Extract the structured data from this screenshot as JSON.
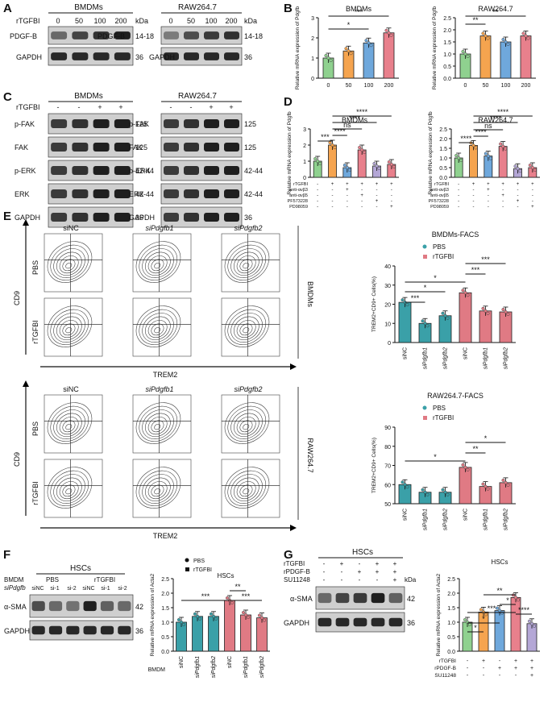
{
  "panels": {
    "A": "A",
    "B": "B",
    "C": "C",
    "D": "D",
    "E": "E",
    "F": "F",
    "G": "G"
  },
  "a": {
    "left": {
      "title": "BMDMs",
      "treat": "rTGFBI",
      "doses": [
        "0",
        "50",
        "100",
        "200"
      ],
      "kda": "kDa",
      "rows": [
        {
          "name": "PDGF-B",
          "size": "14-18"
        },
        {
          "name": "GAPDH",
          "size": "36"
        }
      ]
    },
    "right": {
      "title": "RAW264.7",
      "doses": [
        "0",
        "50",
        "100",
        "200"
      ],
      "kda": "kDa",
      "rows": [
        {
          "name": "PDGF-B",
          "size": "14-18"
        },
        {
          "name": "GAPDH",
          "size": "36"
        }
      ]
    }
  },
  "b": {
    "left": {
      "title": "BMDMs",
      "ylabel": "Relative mRNA expression of Pdgfb",
      "x": [
        "0",
        "50",
        "100",
        "200"
      ],
      "values": [
        1.0,
        1.35,
        1.75,
        2.25
      ],
      "ylim": [
        0,
        3
      ],
      "yticks": [
        "0",
        "1",
        "2",
        "3"
      ],
      "sig": [
        "*",
        "***"
      ],
      "colors": [
        "#8fd18f",
        "#f5a44f",
        "#6fa8dc",
        "#e8808c"
      ]
    },
    "right": {
      "title": "RAW264.7",
      "ylabel": "Relative mRNA expression of Pdgfb",
      "x": [
        "0",
        "50",
        "100",
        "200"
      ],
      "values": [
        1.0,
        1.75,
        1.5,
        1.75
      ],
      "ylim": [
        0,
        2.5
      ],
      "yticks": [
        "0.0",
        "0.5",
        "1.0",
        "1.5",
        "2.0",
        "2.5"
      ],
      "sig": [
        "**",
        "**"
      ]
    }
  },
  "c": {
    "left": {
      "title": "BMDMs",
      "treat": "rTGFBI",
      "signs": [
        "-",
        "-",
        "+",
        "+"
      ],
      "rows": [
        {
          "name": "p-FAK",
          "size": "125"
        },
        {
          "name": "FAK",
          "size": "125"
        },
        {
          "name": "p-ERK",
          "size": "42-44"
        },
        {
          "name": "ERK",
          "size": "42-44"
        },
        {
          "name": "GAPDH",
          "size": "36"
        }
      ]
    },
    "right": {
      "title": "RAW264.7",
      "signs": [
        "-",
        "-",
        "+",
        "+"
      ],
      "rows": [
        {
          "name": "p-FAK",
          "size": "125"
        },
        {
          "name": "FAK",
          "size": "125"
        },
        {
          "name": "p-ERK",
          "size": "42-44"
        },
        {
          "name": "ERK",
          "size": "42-44"
        },
        {
          "name": "GAPDH",
          "size": "36"
        }
      ]
    }
  },
  "d": {
    "left": {
      "title": "BMDMs",
      "ylabel": "Relative mRNA expression of Pdgfb",
      "values": [
        1.0,
        2.0,
        0.6,
        1.7,
        0.7,
        0.8
      ],
      "ylim": [
        0,
        3
      ],
      "yticks": [
        "0",
        "1",
        "2",
        "3"
      ],
      "sig": [
        "***",
        "****",
        "ns",
        "****",
        "****"
      ],
      "colors": [
        "#8fd18f",
        "#f5a44f",
        "#6fa8dc",
        "#e8808c",
        "#b4a7d6",
        "#e8808c"
      ]
    },
    "right": {
      "title": "RAW264.7",
      "ylabel": "Relative mRNA expression of Pdgfb",
      "values": [
        1.0,
        1.65,
        1.1,
        1.6,
        0.45,
        0.5
      ],
      "ylim": [
        0,
        2.5
      ],
      "yticks": [
        "0.0",
        "0.5",
        "1.0",
        "1.5",
        "2.0",
        "2.5"
      ],
      "sig": [
        "****",
        "****",
        "ns",
        "****",
        "****"
      ]
    },
    "treat_rows": [
      {
        "name": "rTGFBI",
        "signs": [
          "-",
          "+",
          "+",
          "+",
          "+",
          "+"
        ]
      },
      {
        "name": "anti-αvβ3",
        "signs": [
          "-",
          "-",
          "+",
          "-",
          "-",
          "-"
        ]
      },
      {
        "name": "anti-αvβ5",
        "signs": [
          "-",
          "-",
          "-",
          "+",
          "-",
          "-"
        ]
      },
      {
        "name": "PF573228",
        "signs": [
          "-",
          "-",
          "-",
          "-",
          "+",
          "-"
        ]
      },
      {
        "name": "PD98059",
        "signs": [
          "-",
          "-",
          "-",
          "-",
          "-",
          "+"
        ]
      }
    ]
  },
  "e": {
    "cols": [
      "siNC",
      "siPdgfb1",
      "siPdgfb2"
    ],
    "rows": [
      "PBS",
      "rTGFBI"
    ],
    "yaxis": "CD9",
    "xaxis": "TREM2",
    "cell_top": "BMDMs",
    "cell_bottom": "RAW264.7",
    "bmdm_chart": {
      "title": "BMDMs-FACS",
      "ylabel": "TREM2+CD9+ Cells(%)",
      "legend": [
        "PBS",
        "rTGFBI"
      ],
      "categories": [
        "siNC",
        "siPdgfb1",
        "siPdgfb2",
        "siNC",
        "siPdgfb1",
        "siPdgfb2"
      ],
      "values": [
        21,
        10,
        14,
        26,
        16.5,
        16
      ],
      "ylim": [
        0,
        40
      ],
      "yticks": [
        "0",
        "10",
        "20",
        "30",
        "40"
      ],
      "sig": [
        "***",
        "*",
        "*",
        "***",
        "***"
      ]
    },
    "raw_chart": {
      "title": "RAW264.7-FACS",
      "ylabel": "TREM2+CD9+ Cells(%)",
      "legend": [
        "PBS",
        "rTGFBI"
      ],
      "categories": [
        "siNC",
        "siPdgfb1",
        "siPdgfb2",
        "siNC",
        "siPdgfb1",
        "siPdgfb2"
      ],
      "values": [
        60,
        56,
        56,
        69,
        59,
        61
      ],
      "ylim": [
        50,
        90
      ],
      "yticks": [
        "50",
        "60",
        "70",
        "80",
        "90"
      ],
      "sig": [
        "*",
        "**",
        "*"
      ]
    }
  },
  "f": {
    "title": "HSCs",
    "bmdm": "BMDM",
    "si": "siPdgfb",
    "groups": [
      "PBS",
      "rTGFBI"
    ],
    "lanes": [
      "siNC",
      "si-1",
      "si-2",
      "siNC",
      "si-1",
      "si-2"
    ],
    "rows": [
      {
        "name": "α-SMA",
        "size": "42"
      },
      {
        "name": "GAPDH",
        "size": "36"
      }
    ],
    "chart": {
      "title": "HSCs",
      "ylabel": "Relative mRNA expression of Acta2",
      "legend": [
        "PBS",
        "rTGFBI"
      ],
      "xlabel": "BMDM",
      "categories": [
        "siNC",
        "siPdgfb1",
        "siPdgfb2",
        "siNC",
        "siPdgfb1",
        "siPdgfb2"
      ],
      "values": [
        1.0,
        1.2,
        1.2,
        1.75,
        1.25,
        1.15
      ],
      "ylim": [
        0,
        2.5
      ],
      "yticks": [
        "0.0",
        "0.5",
        "1.0",
        "1.5",
        "2.0",
        "2.5"
      ],
      "sig": [
        "***",
        "**",
        "***"
      ]
    }
  },
  "g": {
    "title": "HSCs",
    "kda": "kDa",
    "treat_rows": [
      {
        "name": "rTGFBI",
        "signs": [
          "-",
          "+",
          "-",
          "+",
          "+"
        ]
      },
      {
        "name": "rPDGF-B",
        "signs": [
          "-",
          "-",
          "+",
          "+",
          "+"
        ]
      },
      {
        "name": "SU11248",
        "signs": [
          "-",
          "-",
          "-",
          "-",
          "+"
        ]
      }
    ],
    "rows": [
      {
        "name": "α-SMA",
        "size": "42"
      },
      {
        "name": "GAPDH",
        "size": "36"
      }
    ],
    "chart": {
      "title": "HSCs",
      "ylabel": "Relative mRNA expression of Acta2",
      "values": [
        1.0,
        1.35,
        1.4,
        1.85,
        0.95
      ],
      "ylim": [
        0,
        2.5
      ],
      "yticks": [
        "0.0",
        "0.5",
        "1.0",
        "1.5",
        "2.0",
        "2.5"
      ],
      "sig": [
        "*",
        "*",
        "***",
        "**",
        "*",
        "****"
      ],
      "colors": [
        "#8fd18f",
        "#f5a44f",
        "#6fa8dc",
        "#e8808c",
        "#b4a7d6"
      ]
    }
  },
  "colors": {
    "teal": "#3aa0a8",
    "pink": "#e07a84",
    "text": "#111111"
  }
}
